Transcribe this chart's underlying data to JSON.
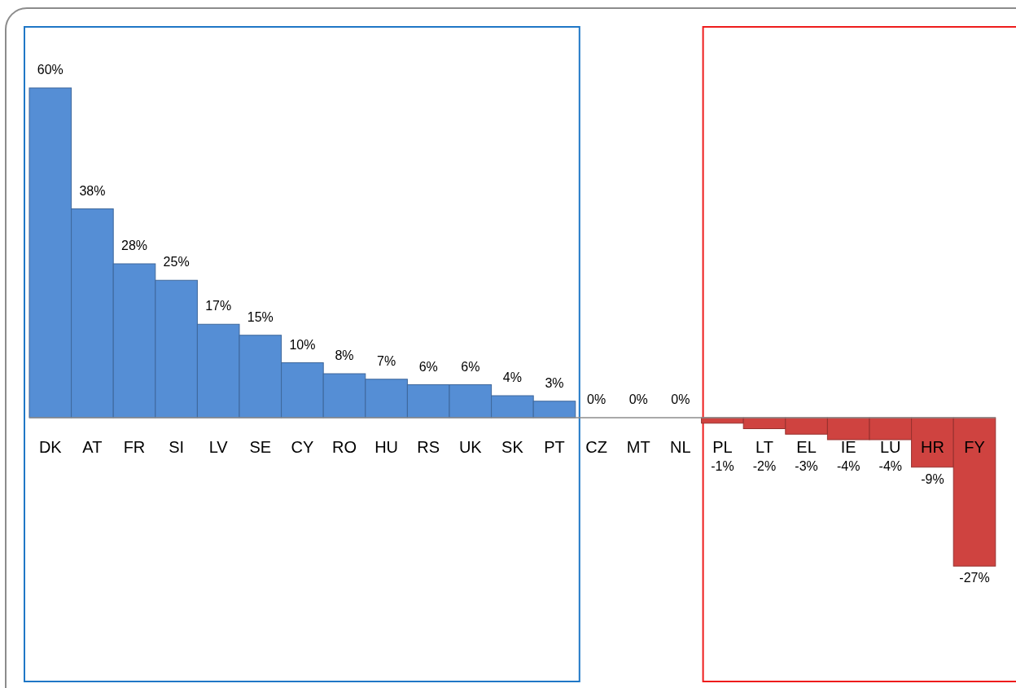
{
  "chart_data": {
    "type": "bar",
    "categories": [
      "DK",
      "AT",
      "FR",
      "SI",
      "LV",
      "SE",
      "CY",
      "RO",
      "HU",
      "RS",
      "UK",
      "SK",
      "PT",
      "CZ",
      "MT",
      "NL",
      "PL",
      "LT",
      "EL",
      "IE",
      "LU",
      "HR",
      "FY"
    ],
    "values": [
      60,
      38,
      28,
      25,
      17,
      15,
      10,
      8,
      7,
      6,
      6,
      4,
      3,
      0,
      0,
      0,
      -1,
      -2,
      -3,
      -4,
      -4,
      -9,
      -27
    ],
    "value_labels": [
      "60%",
      "38%",
      "28%",
      "25%",
      "17%",
      "15%",
      "10%",
      "8%",
      "7%",
      "6%",
      "6%",
      "4%",
      "3%",
      "0%",
      "0%",
      "0%",
      "-1%",
      "-2%",
      "-3%",
      "-4%",
      "-4%",
      "-9%",
      "-27%"
    ],
    "colors": [
      "#558ed5",
      "#558ed5",
      "#558ed5",
      "#558ed5",
      "#558ed5",
      "#558ed5",
      "#558ed5",
      "#558ed5",
      "#558ed5",
      "#558ed5",
      "#558ed5",
      "#558ed5",
      "#558ed5",
      "#558ed5",
      "#558ed5",
      "#558ed5",
      "#cf4340",
      "#cf4340",
      "#cf4340",
      "#cf4340",
      "#cf4340",
      "#cf4340",
      "#cf4340"
    ]
  }
}
